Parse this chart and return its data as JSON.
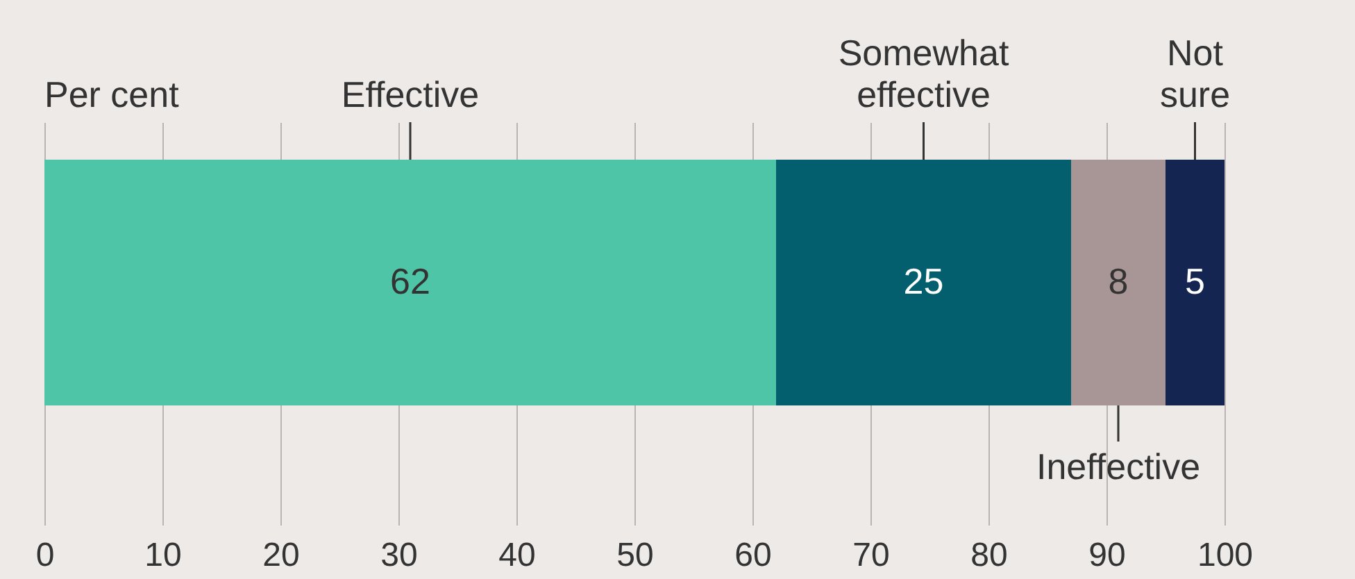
{
  "chart_data": {
    "type": "bar",
    "orientation": "horizontal",
    "stacked": true,
    "xlabel": "Per cent",
    "categories": [
      null
    ],
    "series": [
      {
        "name": "Effective",
        "color": "#4fc5a8",
        "values": [
          62
        ]
      },
      {
        "name": "Somewhat effective",
        "color": "#035f6e",
        "values": [
          25
        ]
      },
      {
        "name": "Ineffective",
        "color": "#a89596",
        "values": [
          8
        ]
      },
      {
        "name": "Not sure",
        "color": "#142552",
        "values": [
          5
        ]
      }
    ],
    "xlim": [
      0,
      100
    ],
    "xticks": [
      0,
      10,
      20,
      30,
      40,
      50,
      60,
      70,
      80,
      90,
      100
    ],
    "grid": "x",
    "data_labels": true
  }
}
